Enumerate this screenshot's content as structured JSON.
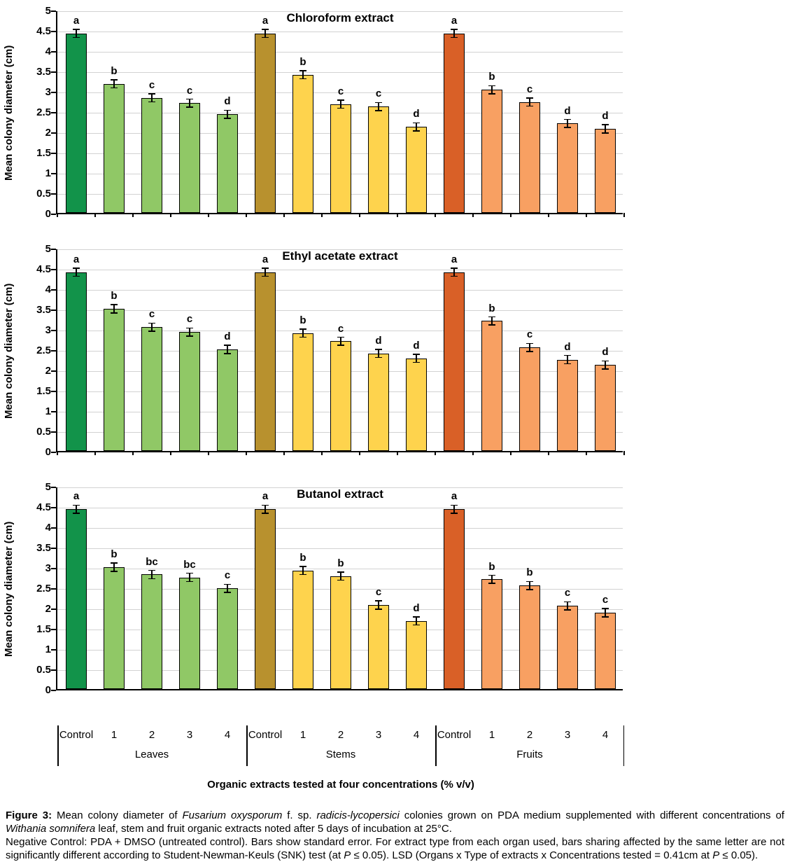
{
  "figure": {
    "y_axis_label": "Mean colony diameter (cm)",
    "y_ticks": [
      "5",
      "4.5",
      "4",
      "3.5",
      "3",
      "2.5",
      "2",
      "1.5",
      "1",
      "0.5",
      "0"
    ],
    "x_axis_title": "Organic extracts tested at four concentrations (% v/v)",
    "categories": [
      "Control",
      "1",
      "2",
      "3",
      "4"
    ],
    "groups": [
      "Leaves",
      "Stems",
      "Fruits"
    ],
    "colors": {
      "leaves_control": "#12934A",
      "leaves_treatment": "#90C866",
      "stems_control": "#B8912E",
      "stems_treatment": "#FED34D",
      "fruits_control": "#D96027",
      "fruits_treatment": "#F8A062",
      "gridline": "#D2D2D2",
      "axis": "#000000",
      "error_bar": "#000000"
    }
  },
  "chart_data": [
    {
      "type": "bar",
      "title": "Chloroform extract",
      "ylabel": "Mean colony diameter (cm)",
      "xlabel": "",
      "ylim": [
        0,
        5
      ],
      "grid": true,
      "legend": "none",
      "categories": [
        "Control",
        "1",
        "2",
        "3",
        "4"
      ],
      "series": [
        {
          "name": "Leaves",
          "values": [
            4.42,
            3.18,
            2.83,
            2.7,
            2.43
          ],
          "errors": [
            0.1,
            0.1,
            0.1,
            0.1,
            0.1
          ],
          "letters": [
            "a",
            "b",
            "c",
            "c",
            "d"
          ]
        },
        {
          "name": "Stems",
          "values": [
            4.42,
            3.4,
            2.68,
            2.62,
            2.12
          ],
          "errors": [
            0.1,
            0.1,
            0.1,
            0.1,
            0.1
          ],
          "letters": [
            "a",
            "b",
            "c",
            "c",
            "d"
          ]
        },
        {
          "name": "Fruits",
          "values": [
            4.42,
            3.03,
            2.73,
            2.2,
            2.07
          ],
          "errors": [
            0.1,
            0.1,
            0.1,
            0.1,
            0.1
          ],
          "letters": [
            "a",
            "b",
            "c",
            "d",
            "d"
          ]
        }
      ]
    },
    {
      "type": "bar",
      "title": "Ethyl acetate extract",
      "ylabel": "Mean colony diameter (cm)",
      "xlabel": "",
      "ylim": [
        0,
        5
      ],
      "grid": true,
      "legend": "none",
      "categories": [
        "Control",
        "1",
        "2",
        "3",
        "4"
      ],
      "series": [
        {
          "name": "Leaves",
          "values": [
            4.4,
            3.5,
            3.05,
            2.93,
            2.5
          ],
          "errors": [
            0.1,
            0.1,
            0.1,
            0.1,
            0.1
          ],
          "letters": [
            "a",
            "b",
            "c",
            "c",
            "d"
          ]
        },
        {
          "name": "Stems",
          "values": [
            4.4,
            2.9,
            2.7,
            2.4,
            2.28
          ],
          "errors": [
            0.1,
            0.1,
            0.1,
            0.1,
            0.1
          ],
          "letters": [
            "a",
            "b",
            "c",
            "d",
            "d"
          ]
        },
        {
          "name": "Fruits",
          "values": [
            4.4,
            3.2,
            2.55,
            2.25,
            2.12
          ],
          "errors": [
            0.1,
            0.1,
            0.1,
            0.1,
            0.1
          ],
          "letters": [
            "a",
            "b",
            "c",
            "d",
            "d"
          ]
        }
      ]
    },
    {
      "type": "bar",
      "title": "Butanol extract",
      "ylabel": "Mean colony diameter (cm)",
      "xlabel": "Organic extracts tested at four concentrations (% v/v)",
      "ylim": [
        0,
        5
      ],
      "grid": true,
      "legend": "none",
      "categories": [
        "Control",
        "1",
        "2",
        "3",
        "4"
      ],
      "series": [
        {
          "name": "Leaves",
          "values": [
            4.43,
            3.0,
            2.82,
            2.75,
            2.48
          ],
          "errors": [
            0.1,
            0.1,
            0.1,
            0.1,
            0.1
          ],
          "letters": [
            "a",
            "b",
            "bc",
            "bc",
            "c"
          ]
        },
        {
          "name": "Stems",
          "values": [
            4.43,
            2.92,
            2.78,
            2.07,
            1.68
          ],
          "errors": [
            0.1,
            0.1,
            0.1,
            0.1,
            0.1
          ],
          "letters": [
            "a",
            "b",
            "b",
            "c",
            "d"
          ]
        },
        {
          "name": "Fruits",
          "values": [
            4.43,
            2.7,
            2.55,
            2.05,
            1.88
          ],
          "errors": [
            0.1,
            0.1,
            0.1,
            0.1,
            0.1
          ],
          "letters": [
            "a",
            "b",
            "b",
            "c",
            "c"
          ]
        }
      ]
    }
  ],
  "caption": {
    "paragraphs": [
      [
        {
          "t": "Figure 3:",
          "b": true
        },
        {
          "t": " Mean colony diameter of "
        },
        {
          "t": "Fusarium oxysporum",
          "i": true
        },
        {
          "t": " f. sp. "
        },
        {
          "t": "radicis-lycopersici",
          "i": true
        },
        {
          "t": " colonies grown on PDA medium supplemented with different concentrations of "
        },
        {
          "t": "Withania somnifera",
          "i": true
        },
        {
          "t": " leaf, stem and fruit organic extracts noted after 5 days of incubation at 25°C."
        }
      ],
      [
        {
          "t": "Negative Control: PDA + DMSO (untreated control). Bars show standard error. For extract type from each organ used, bars sharing affected by the same letter are not significantly different according to Student-Newman-Keuls (SNK) test (at "
        },
        {
          "t": "P",
          "i": true
        },
        {
          "t": " ≤ 0.05). LSD (Organs x Type of extracts x Concentrations tested = 0.41cm at "
        },
        {
          "t": "P",
          "i": true
        },
        {
          "t": " ≤  0.05)."
        }
      ]
    ]
  }
}
